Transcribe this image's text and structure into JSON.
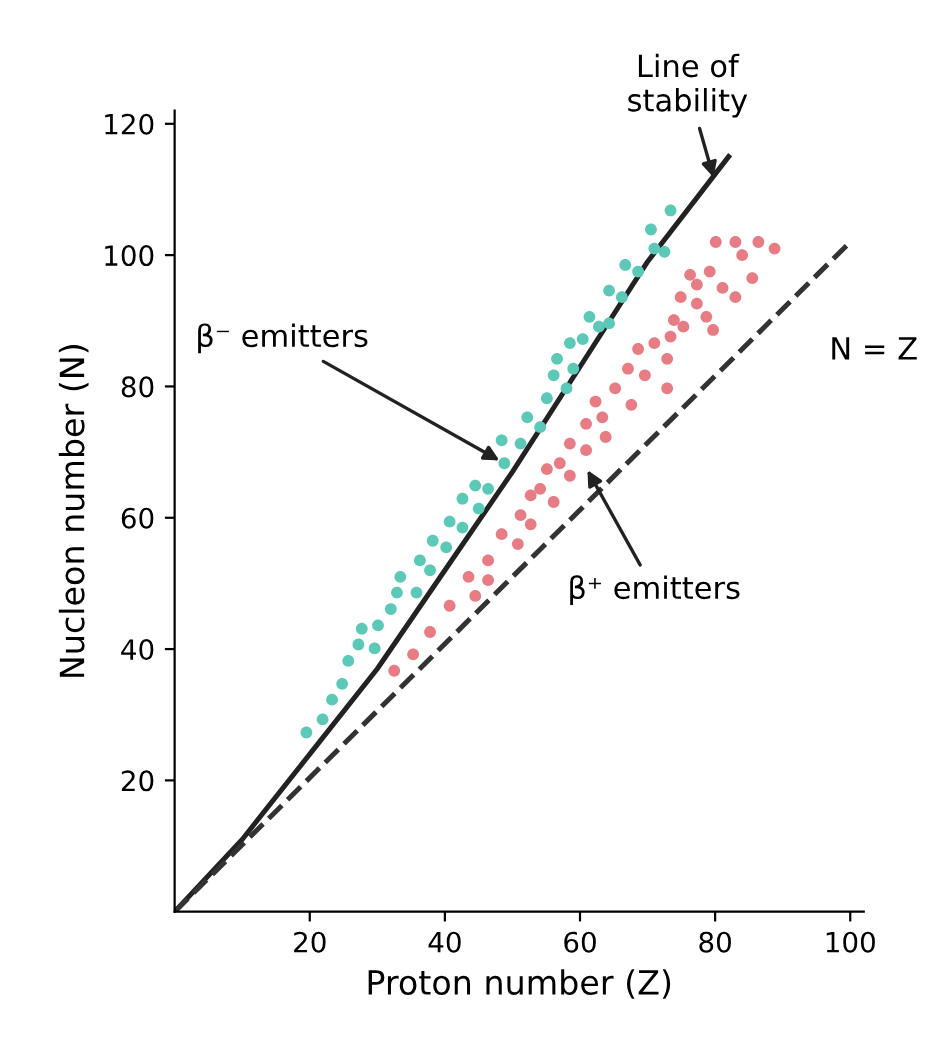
{
  "chart_data": {
    "type": "scatter",
    "xlabel": "Proton number (Z)",
    "ylabel": "Nucleon number (N)",
    "xlim": [
      0,
      102
    ],
    "ylim": [
      0,
      122
    ],
    "xticks": [
      20,
      40,
      60,
      80,
      100
    ],
    "yticks": [
      20,
      40,
      60,
      80,
      100,
      120
    ],
    "grid": false,
    "legend": false,
    "marker": "circle",
    "series": [
      {
        "color": "#5cc9b8",
        "x": [
          19.5,
          21.9,
          23.3,
          24.8,
          25.7,
          27.2,
          27.7,
          29.6,
          30.1,
          32.0,
          32.9,
          33.4,
          35.8,
          36.3,
          37.8,
          38.2,
          40.2,
          40.7,
          42.6,
          42.6,
          44.5,
          45.0,
          46.4,
          48.4,
          48.8,
          51.2,
          52.2,
          54.1,
          55.1,
          56.1,
          56.6,
          58.0,
          58.5,
          59.0,
          60.4,
          61.4,
          62.8,
          64.3,
          64.3,
          66.2,
          66.7,
          68.6,
          70.5,
          71.0,
          72.5,
          73.4
        ],
        "values": [
          27.3,
          29.3,
          32.3,
          34.7,
          38.2,
          40.7,
          43.1,
          40.1,
          43.6,
          46.1,
          48.6,
          51.0,
          48.6,
          53.5,
          52.0,
          56.5,
          55.5,
          59.4,
          58.5,
          62.9,
          64.9,
          61.4,
          64.4,
          71.8,
          68.3,
          71.3,
          75.3,
          73.8,
          78.2,
          81.7,
          84.2,
          79.7,
          86.6,
          82.7,
          87.2,
          90.6,
          89.1,
          89.6,
          94.6,
          93.6,
          98.5,
          97.5,
          103.9,
          101.0,
          100.5,
          106.8
        ]
      },
      {
        "color": "#e87c84",
        "x": [
          32.5,
          35.3,
          37.8,
          40.7,
          43.5,
          44.5,
          46.4,
          46.4,
          48.4,
          50.8,
          51.2,
          52.7,
          52.7,
          54.1,
          56.1,
          55.1,
          57.0,
          58.5,
          58.5,
          60.9,
          60.9,
          62.3,
          63.3,
          63.8,
          65.2,
          67.1,
          67.6,
          68.6,
          69.6,
          71.0,
          72.9,
          72.9,
          73.4,
          73.9,
          75.3,
          74.9,
          76.3,
          77.3,
          77.3,
          78.7,
          79.2,
          79.7,
          80.1,
          81.1,
          83.0,
          84.0,
          85.5,
          83.0,
          86.4,
          88.8
        ],
        "values": [
          36.7,
          39.2,
          42.6,
          46.6,
          51.0,
          48.1,
          53.5,
          50.5,
          57.5,
          56.0,
          60.4,
          59.0,
          63.4,
          64.4,
          62.4,
          67.4,
          68.3,
          66.4,
          71.3,
          74.3,
          70.3,
          77.7,
          75.3,
          72.3,
          79.7,
          82.7,
          77.2,
          85.7,
          81.7,
          86.6,
          79.7,
          84.2,
          87.6,
          90.1,
          89.1,
          93.6,
          97.0,
          92.6,
          95.5,
          90.6,
          97.5,
          88.6,
          102.0,
          95.0,
          102.0,
          100.0,
          96.5,
          93.6,
          102.0,
          101.0
        ]
      },
      {
        "type": "line",
        "color": "#222222",
        "line_style": "solid",
        "marker": "none",
        "x": [
          0,
          10,
          20,
          30,
          40,
          50,
          60,
          70,
          82
        ],
        "values": [
          0,
          11,
          24,
          37,
          52,
          67,
          83,
          99,
          115
        ]
      },
      {
        "type": "line",
        "color": "#333333",
        "line_style": "dashed",
        "marker": "none",
        "x": [
          0,
          100
        ],
        "values": [
          0,
          102
        ]
      }
    ],
    "annotations": [
      {
        "text": "Line of\nstability",
        "x": 80,
        "y": 111
      },
      {
        "text": "β⁻ emitters",
        "x": 48.8,
        "y": 68.3
      },
      {
        "text": "β⁺ emitters",
        "x": 60.7,
        "y": 68
      },
      "N = Z"
    ]
  }
}
